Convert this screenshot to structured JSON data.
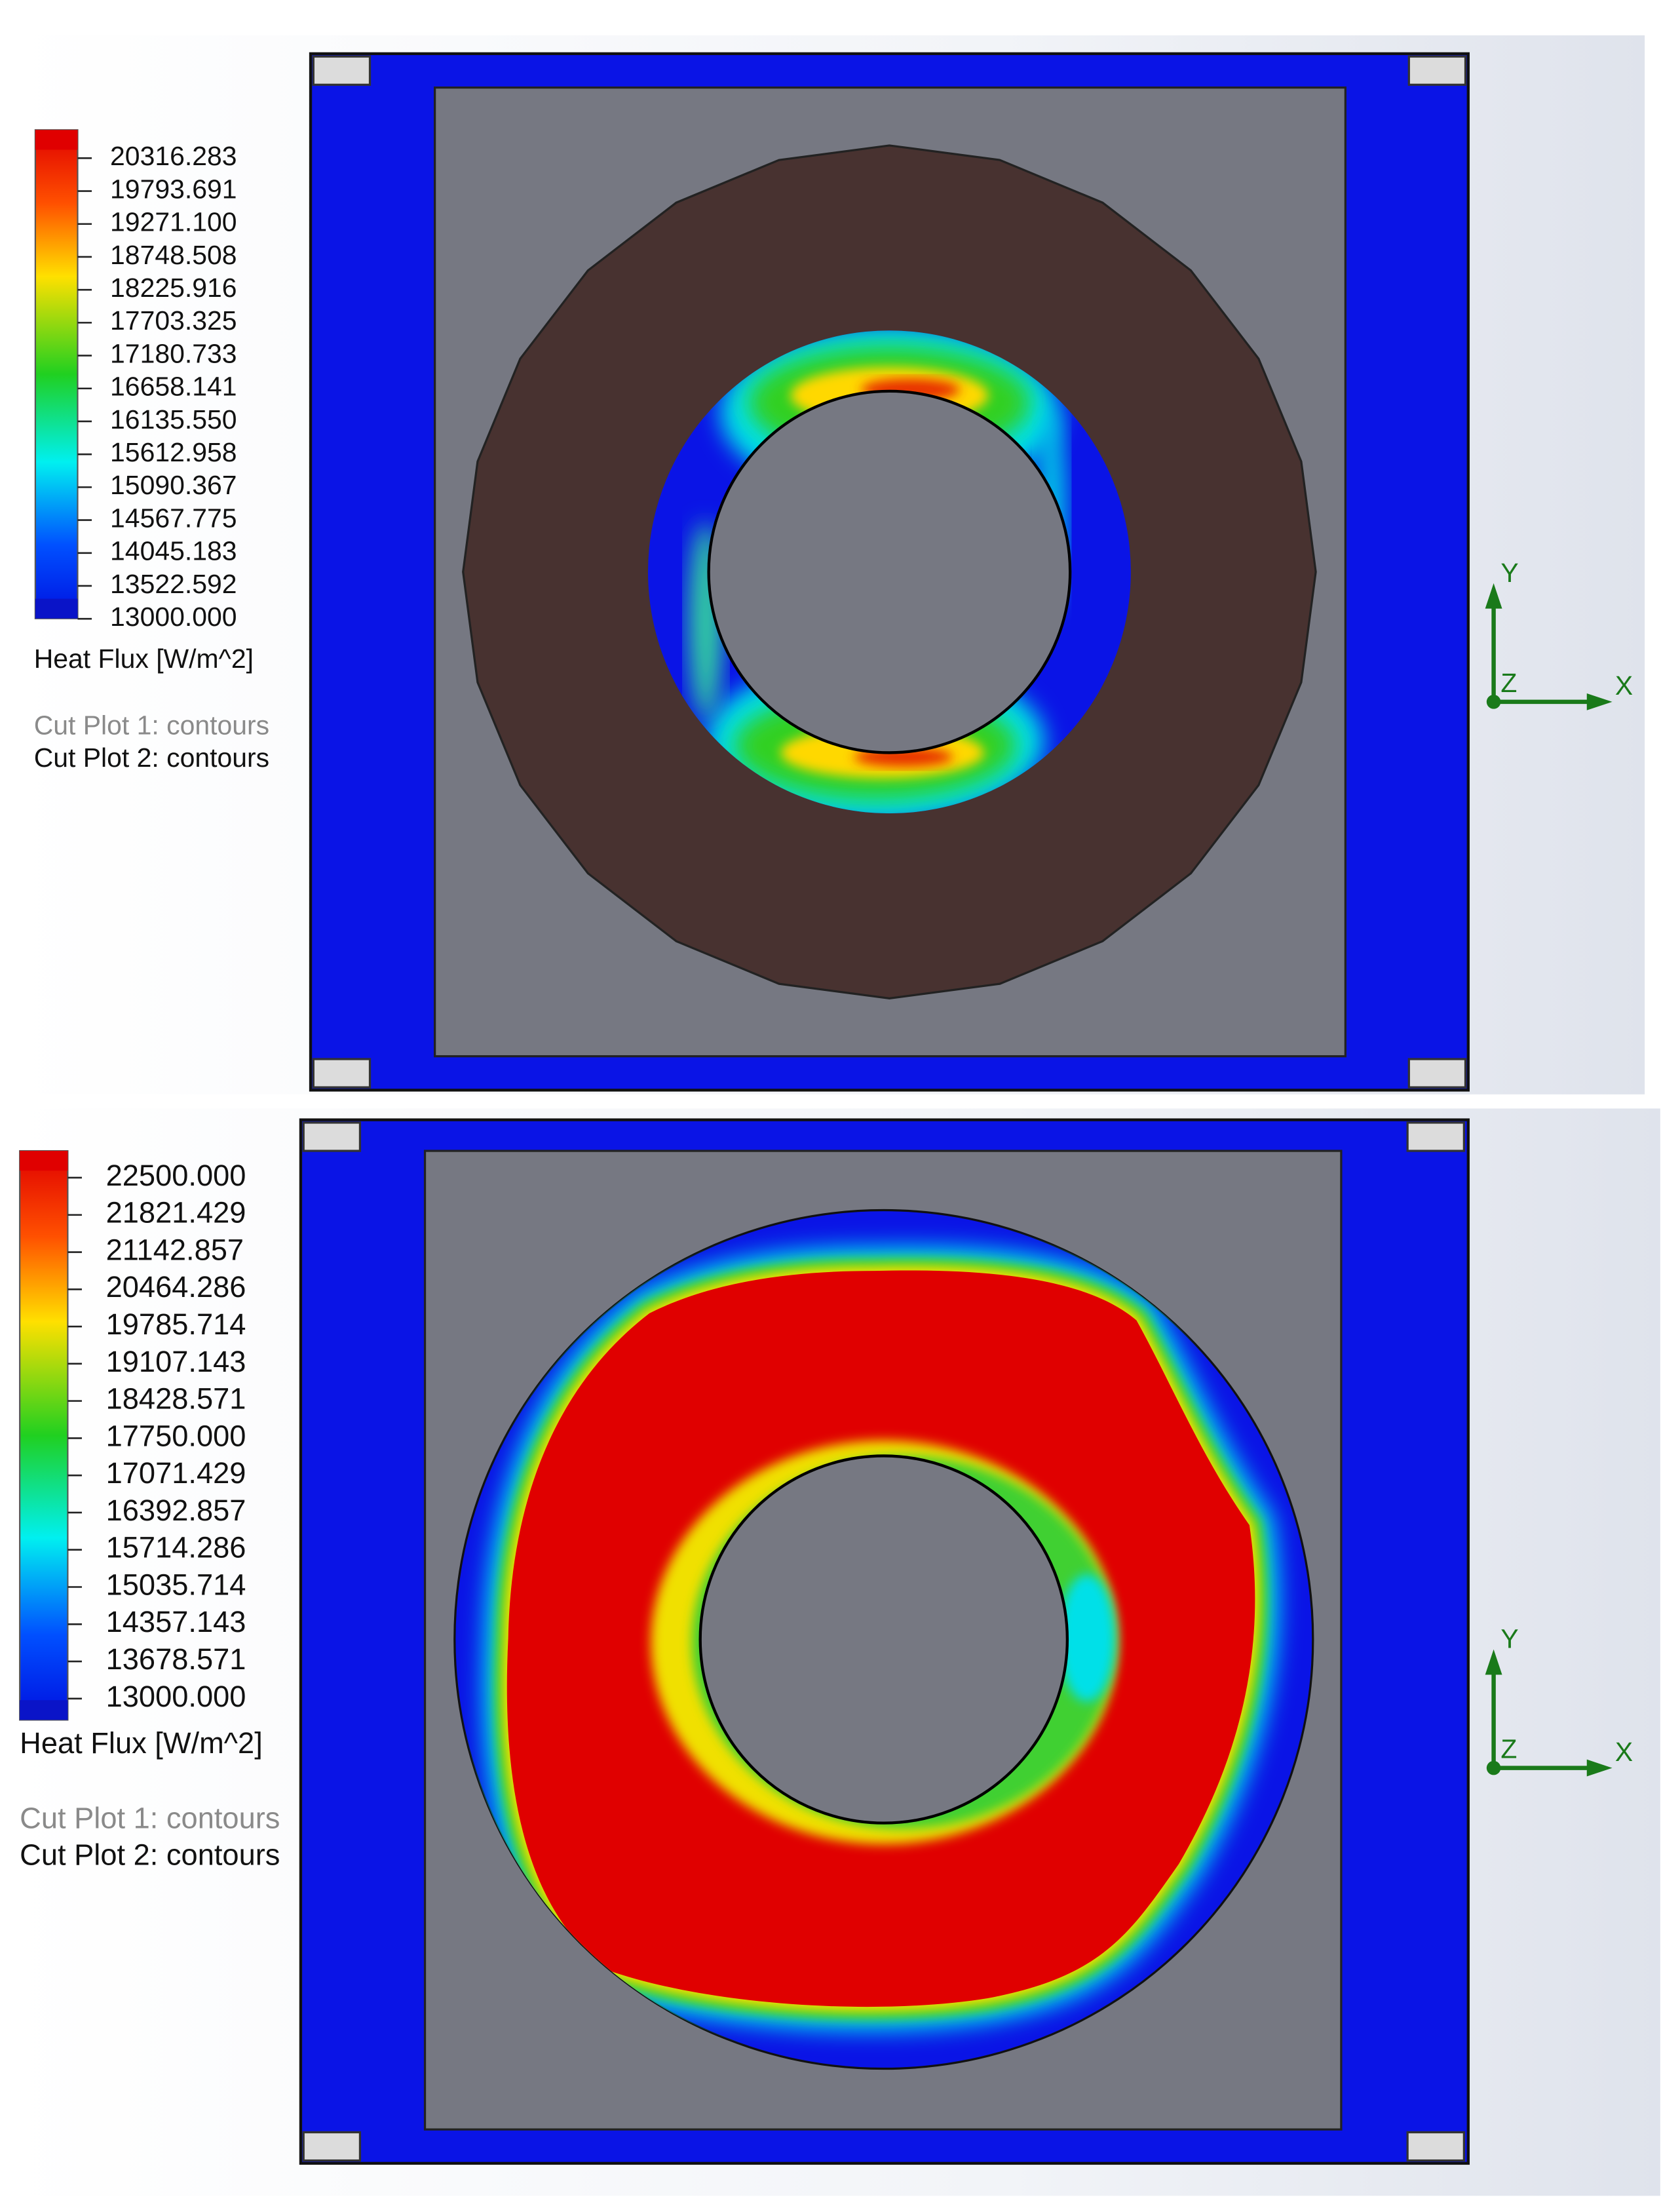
{
  "panels": [
    {
      "legend": {
        "labels": [
          "20316.283",
          "19793.691",
          "19271.100",
          "18748.508",
          "18225.916",
          "17703.325",
          "17180.733",
          "16658.141",
          "16135.550",
          "15612.958",
          "15090.367",
          "14567.775",
          "14045.183",
          "13522.592",
          "13000.000"
        ],
        "title": "Heat Flux [W/m^2]"
      },
      "plots": [
        "Cut Plot 1: contours",
        "Cut Plot 2: contours"
      ],
      "axes": {
        "y": "Y",
        "z": "Z",
        "x": "X"
      }
    },
    {
      "legend": {
        "labels": [
          "22500.000",
          "21821.429",
          "21142.857",
          "20464.286",
          "19785.714",
          "19107.143",
          "18428.571",
          "17750.000",
          "17071.429",
          "16392.857",
          "15714.286",
          "15035.714",
          "14357.143",
          "13678.571",
          "13000.000"
        ],
        "title": "Heat Flux [W/m^2]"
      },
      "plots": [
        "Cut Plot 1: contours",
        "Cut Plot 2: contours"
      ],
      "axes": {
        "y": "Y",
        "z": "Z",
        "x": "X"
      }
    }
  ]
}
